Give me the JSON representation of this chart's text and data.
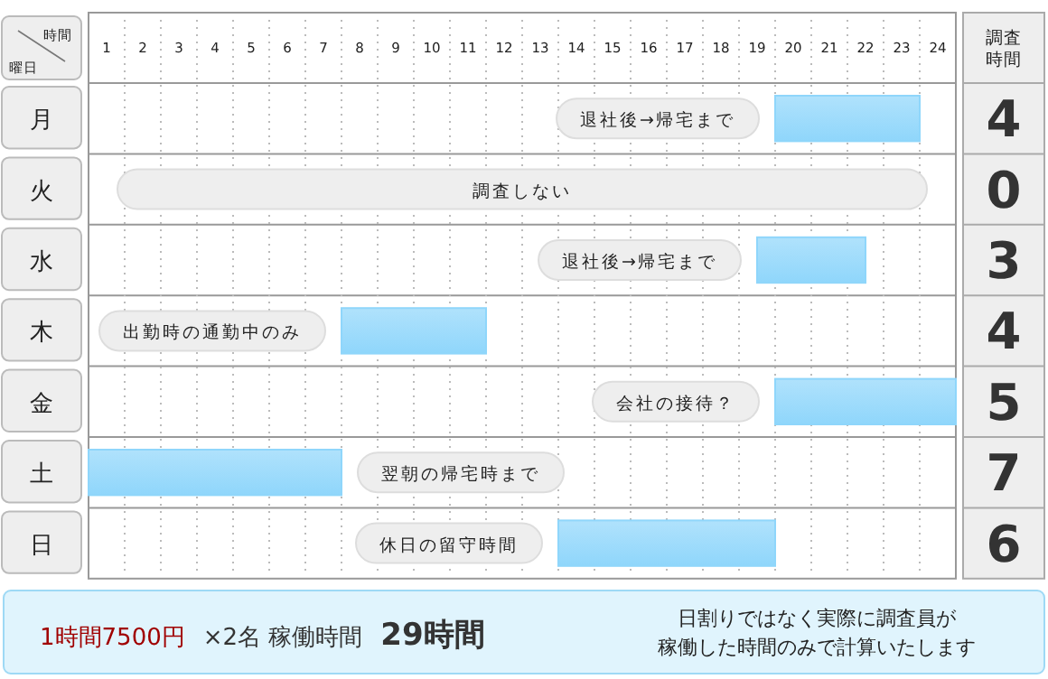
{
  "chart_data": {
    "type": "bar",
    "orientation": "horizontal",
    "xlabel": "時間",
    "ylabel": "曜日",
    "categories": [
      "月",
      "火",
      "水",
      "木",
      "金",
      "土",
      "日"
    ],
    "base": [
      19,
      null,
      18.5,
      7,
      19,
      0,
      13
    ],
    "values": [
      4,
      0,
      3,
      4,
      5,
      7,
      6
    ],
    "color": "#8fd6fb",
    "data_labels": true,
    "xlim": [
      0,
      24
    ],
    "xticks": [
      {
        "value": 0.5,
        "label": "1"
      },
      {
        "value": 1,
        "label": null
      },
      {
        "value": 1.5,
        "label": "2"
      },
      {
        "value": 2,
        "label": null
      },
      {
        "value": 2.5,
        "label": "3"
      },
      {
        "value": 3,
        "label": null
      },
      {
        "value": 3.5,
        "label": "4"
      },
      {
        "value": 4,
        "label": null
      },
      {
        "value": 4.5,
        "label": "5"
      },
      {
        "value": 5,
        "label": null
      },
      {
        "value": 5.5,
        "label": "6"
      },
      {
        "value": 6,
        "label": null
      },
      {
        "value": 6.5,
        "label": "7"
      },
      {
        "value": 7,
        "label": null
      },
      {
        "value": 7.5,
        "label": "8"
      },
      {
        "value": 8,
        "label": null
      },
      {
        "value": 8.5,
        "label": "9"
      },
      {
        "value": 9,
        "label": null
      },
      {
        "value": 9.5,
        "label": "10"
      },
      {
        "value": 10,
        "label": null
      },
      {
        "value": 10.5,
        "label": "11"
      },
      {
        "value": 11,
        "label": null
      },
      {
        "value": 11.5,
        "label": "12"
      },
      {
        "value": 12,
        "label": null
      },
      {
        "value": 12.5,
        "label": "13"
      },
      {
        "value": 13,
        "label": null
      },
      {
        "value": 13.5,
        "label": "14"
      },
      {
        "value": 14,
        "label": null
      },
      {
        "value": 14.5,
        "label": "15"
      },
      {
        "value": 15,
        "label": null
      },
      {
        "value": 15.5,
        "label": "16"
      },
      {
        "value": 16,
        "label": null
      },
      {
        "value": 16.5,
        "label": "17"
      },
      {
        "value": 17,
        "label": null
      },
      {
        "value": 17.5,
        "label": "18"
      },
      {
        "value": 18,
        "label": null
      },
      {
        "value": 18.5,
        "label": "19"
      },
      {
        "value": 19,
        "label": null
      },
      {
        "value": 19.5,
        "label": "20"
      },
      {
        "value": 20,
        "label": null
      },
      {
        "value": 20.5,
        "label": "21"
      },
      {
        "value": 21,
        "label": null
      },
      {
        "value": 21.5,
        "label": "22"
      },
      {
        "value": 22,
        "label": null
      },
      {
        "value": 22.5,
        "label": "23"
      },
      {
        "value": 23,
        "label": null
      },
      {
        "value": 23.5,
        "label": "24"
      }
    ],
    "grid": "x",
    "annotations": [
      "調査時間",
      {
        "text": "退社後→帰宅まで",
        "x": 19,
        "y": "月"
      },
      "調査しない",
      {
        "text": "退社後→帰宅まで",
        "x": 18.5,
        "y": "水"
      },
      {
        "text": "出勤時の通勤中のみ",
        "x": 7,
        "y": "木"
      },
      {
        "text": "会社の接待？",
        "x": 19,
        "y": "金"
      },
      {
        "text": "翌朝の帰宅時まで",
        "x": 7,
        "y": "土"
      },
      {
        "text": "休日の留守時間",
        "x": 13,
        "y": "日"
      },
      "1時間7500円",
      "×2名 稼働時間",
      "29時間",
      "日割りではなく実際に調査員が",
      "稼働した時間のみで計算いたします"
    ]
  }
}
